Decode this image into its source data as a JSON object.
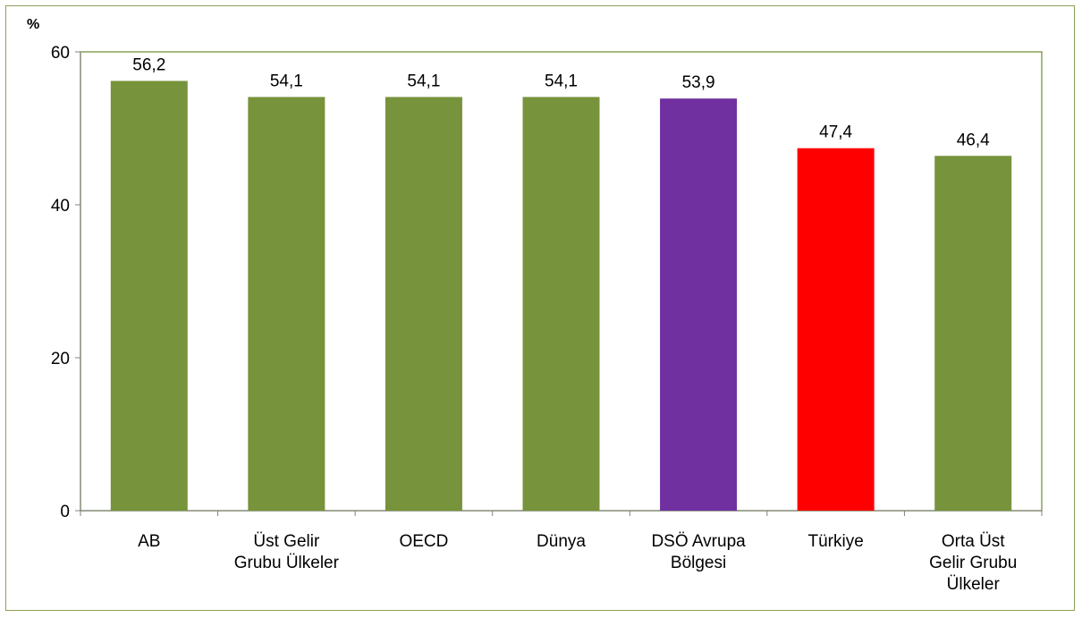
{
  "chart_data": {
    "type": "bar",
    "ylabel": "%",
    "ylim": [
      0,
      60
    ],
    "yticks": [
      "0",
      "20",
      "40",
      "60"
    ],
    "grid": false,
    "categories": [
      [
        "AB"
      ],
      [
        "Üst Gelir",
        "Grubu Ülkeler"
      ],
      [
        "OECD"
      ],
      [
        "Dünya"
      ],
      [
        "DSÖ Avrupa",
        "Bölgesi"
      ],
      [
        "Türkiye"
      ],
      [
        "Orta Üst",
        "Gelir Grubu",
        "Ülkeler"
      ]
    ],
    "values": [
      56.2,
      54.1,
      54.1,
      54.1,
      53.9,
      47.4,
      46.4
    ],
    "value_labels": [
      "56,2",
      "54,1",
      "54,1",
      "54,1",
      "53,9",
      "47,4",
      "46,4"
    ],
    "colors": [
      "#77933c",
      "#77933c",
      "#77933c",
      "#77933c",
      "#7030a0",
      "#ff0000",
      "#77933c"
    ],
    "plot_border_color": "#8aa05a",
    "frame_border_color": "#8aa05a"
  }
}
